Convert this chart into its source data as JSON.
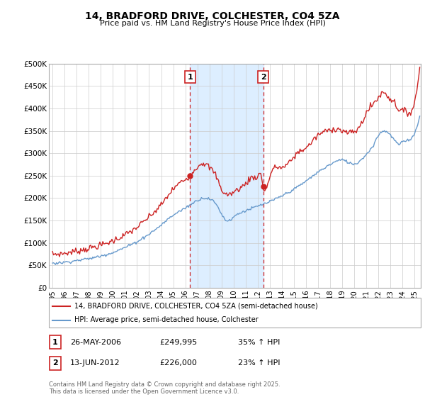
{
  "title": "14, BRADFORD DRIVE, COLCHESTER, CO4 5ZA",
  "subtitle": "Price paid vs. HM Land Registry's House Price Index (HPI)",
  "ylabel_ticks": [
    "£0",
    "£50K",
    "£100K",
    "£150K",
    "£200K",
    "£250K",
    "£300K",
    "£350K",
    "£400K",
    "£450K",
    "£500K"
  ],
  "ytick_values": [
    0,
    50000,
    100000,
    150000,
    200000,
    250000,
    300000,
    350000,
    400000,
    450000,
    500000
  ],
  "ylim": [
    0,
    500000
  ],
  "xlim_start": 1994.7,
  "xlim_end": 2025.5,
  "sale1_x": 2006.4,
  "sale1_y": 249995,
  "sale2_x": 2012.45,
  "sale2_y": 226000,
  "sale1_date": "26-MAY-2006",
  "sale1_price": "£249,995",
  "sale1_hpi": "35% ↑ HPI",
  "sale2_date": "13-JUN-2012",
  "sale2_price": "£226,000",
  "sale2_hpi": "23% ↑ HPI",
  "shade_color": "#ddeeff",
  "red_line_color": "#cc2222",
  "blue_line_color": "#6699cc",
  "dashed_color": "#cc2222",
  "legend_label_red": "14, BRADFORD DRIVE, COLCHESTER, CO4 5ZA (semi-detached house)",
  "legend_label_blue": "HPI: Average price, semi-detached house, Colchester",
  "footer": "Contains HM Land Registry data © Crown copyright and database right 2025.\nThis data is licensed under the Open Government Licence v3.0.",
  "xticks": [
    1995,
    1996,
    1997,
    1998,
    1999,
    2000,
    2001,
    2002,
    2003,
    2004,
    2005,
    2006,
    2007,
    2008,
    2009,
    2010,
    2011,
    2012,
    2013,
    2014,
    2015,
    2016,
    2017,
    2018,
    2019,
    2020,
    2021,
    2022,
    2023,
    2024,
    2025
  ]
}
